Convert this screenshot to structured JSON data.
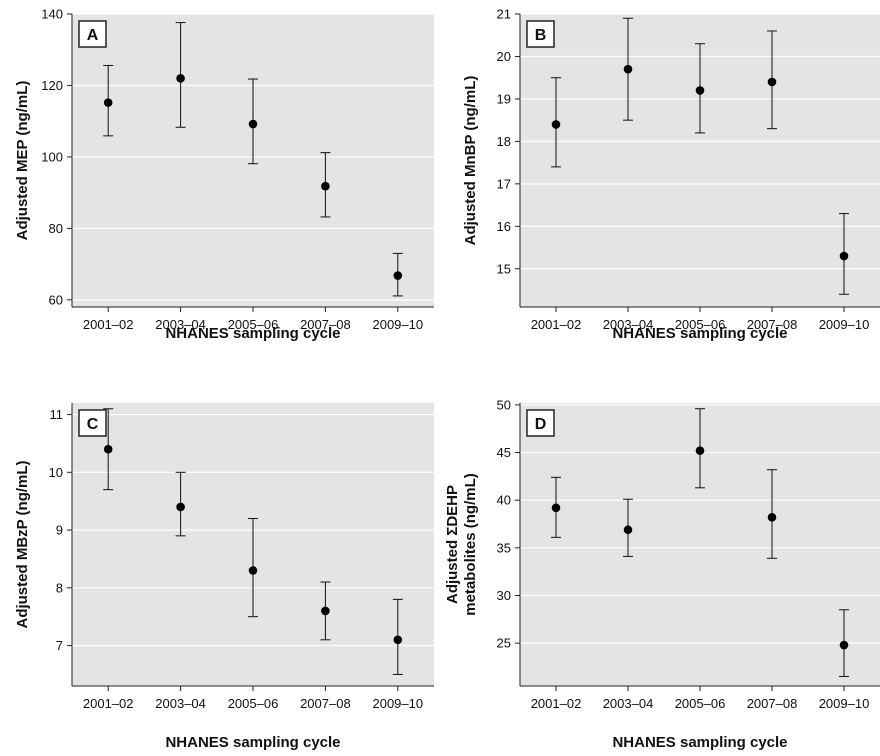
{
  "chart_data": [
    {
      "panel": "A",
      "type": "scatter",
      "xlabel": "NHANES sampling cycle",
      "ylabel": "Adjusted MEP (ng/mL)",
      "ylabel_lines": [
        "Adjusted MEP (ng/mL)"
      ],
      "categories": [
        "2001–02",
        "2003–04",
        "2005–06",
        "2007–08",
        "2009–10"
      ],
      "values": [
        115.2,
        122.0,
        109.2,
        91.8,
        66.8
      ],
      "ci_lower": [
        105.9,
        108.3,
        98.1,
        83.2,
        61.1
      ],
      "ci_upper": [
        125.6,
        137.6,
        121.8,
        101.2,
        73.0
      ],
      "ylim": [
        58,
        140
      ],
      "yticks": [
        60,
        80,
        100,
        120,
        140
      ],
      "grid": true
    },
    {
      "panel": "B",
      "type": "scatter",
      "xlabel": "NHANES sampling cycle",
      "ylabel": "Adjusted MnBP (ng/mL)",
      "ylabel_lines": [
        "Adjusted MnBP (ng/mL)"
      ],
      "categories": [
        "2001–02",
        "2003–04",
        "2005–06",
        "2007–08",
        "2009–10"
      ],
      "values": [
        18.4,
        19.7,
        19.2,
        19.4,
        15.3
      ],
      "ci_lower": [
        17.4,
        18.5,
        18.2,
        18.3,
        14.4
      ],
      "ci_upper": [
        19.5,
        20.9,
        20.3,
        20.6,
        16.3
      ],
      "ylim": [
        14.1,
        21
      ],
      "yticks": [
        15,
        16,
        17,
        18,
        19,
        20,
        21
      ],
      "grid": true
    },
    {
      "panel": "C",
      "type": "scatter",
      "xlabel": "NHANES sampling cycle",
      "ylabel": "Adjusted MBzP (ng/mL)",
      "ylabel_lines": [
        "Adjusted MBzP (ng/mL)"
      ],
      "categories": [
        "2001–02",
        "2003–04",
        "2005–06",
        "2007–08",
        "2009–10"
      ],
      "values": [
        10.4,
        9.4,
        8.3,
        7.6,
        7.1
      ],
      "ci_lower": [
        9.7,
        8.9,
        7.5,
        7.1,
        6.5
      ],
      "ci_upper": [
        11.1,
        10.0,
        9.2,
        8.1,
        7.8
      ],
      "ylim": [
        6.3,
        11.2
      ],
      "yticks": [
        7,
        8,
        9,
        10,
        11
      ],
      "grid": true
    },
    {
      "panel": "D",
      "type": "scatter",
      "xlabel": "NHANES sampling cycle",
      "ylabel": "Adjusted ΣDEHP metabolites (ng/mL)",
      "ylabel_lines": [
        "Adjusted ΣDEHP",
        "metabolites (ng/mL)"
      ],
      "categories": [
        "2001–02",
        "2003–04",
        "2005–06",
        "2007–08",
        "2009–10"
      ],
      "values": [
        39.2,
        36.9,
        45.2,
        38.2,
        24.8
      ],
      "ci_lower": [
        36.1,
        34.1,
        41.3,
        33.9,
        21.5
      ],
      "ci_upper": [
        42.4,
        40.1,
        49.6,
        43.2,
        28.5
      ],
      "ylim": [
        20.5,
        50.2
      ],
      "yticks": [
        25,
        30,
        35,
        40,
        45,
        50
      ],
      "grid": true
    }
  ]
}
